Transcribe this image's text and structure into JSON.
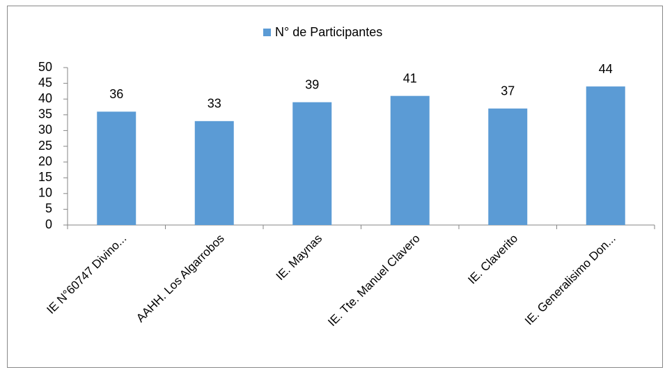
{
  "chart_data": {
    "type": "bar",
    "categories": [
      "IE N°60747 Divino...",
      "AAHH. Los Algarrobos",
      "IE. Maynas",
      "IE. Tte. Manuel Clavero",
      "IE. Claverito",
      "IE. Generalisimo Don..."
    ],
    "series": [
      {
        "name": "N° de Participantes",
        "color": "#5b9bd5",
        "values": [
          36,
          33,
          39,
          41,
          37,
          44
        ]
      }
    ],
    "ylim": [
      0,
      50
    ],
    "yticks": [
      0,
      5,
      10,
      15,
      20,
      25,
      30,
      35,
      40,
      45,
      50
    ],
    "legend": "top",
    "grid": false
  }
}
